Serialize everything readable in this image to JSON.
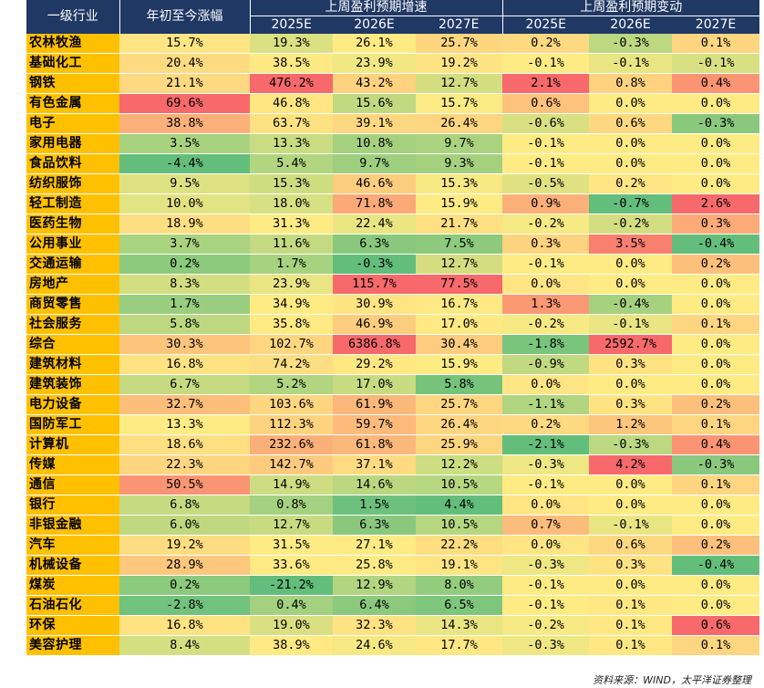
{
  "table": {
    "headers": {
      "industry": "一级行业",
      "ytd": "年初至今涨幅",
      "growth_group": "上周盈利预期增速",
      "change_group": "上周盈利预期变动",
      "years": [
        "2025E",
        "2026E",
        "2027E"
      ]
    },
    "rows": [
      {
        "name": "农林牧渔",
        "ytd": "15.7%",
        "g25": "19.3%",
        "g26": "26.1%",
        "g27": "25.7%",
        "c25": "0.2%",
        "c26": "-0.3%",
        "c27": "0.1%"
      },
      {
        "name": "基础化工",
        "ytd": "20.4%",
        "g25": "38.5%",
        "g26": "23.9%",
        "g27": "19.2%",
        "c25": "-0.1%",
        "c26": "-0.1%",
        "c27": "-0.1%"
      },
      {
        "name": "钢铁",
        "ytd": "21.1%",
        "g25": "476.2%",
        "g26": "43.2%",
        "g27": "12.7%",
        "c25": "2.1%",
        "c26": "0.8%",
        "c27": "0.4%"
      },
      {
        "name": "有色金属",
        "ytd": "69.6%",
        "g25": "46.8%",
        "g26": "15.6%",
        "g27": "15.7%",
        "c25": "0.6%",
        "c26": "0.0%",
        "c27": "0.0%"
      },
      {
        "name": "电子",
        "ytd": "38.8%",
        "g25": "63.7%",
        "g26": "39.1%",
        "g27": "26.4%",
        "c25": "-0.6%",
        "c26": "0.6%",
        "c27": "-0.3%"
      },
      {
        "name": "家用电器",
        "ytd": "3.5%",
        "g25": "13.3%",
        "g26": "10.8%",
        "g27": "9.7%",
        "c25": "-0.1%",
        "c26": "0.0%",
        "c27": "0.0%"
      },
      {
        "name": "食品饮料",
        "ytd": "-4.4%",
        "g25": "5.4%",
        "g26": "9.7%",
        "g27": "9.3%",
        "c25": "-0.1%",
        "c26": "0.0%",
        "c27": "0.0%"
      },
      {
        "name": "纺织服饰",
        "ytd": "9.5%",
        "g25": "15.3%",
        "g26": "46.6%",
        "g27": "15.3%",
        "c25": "-0.5%",
        "c26": "0.2%",
        "c27": "0.0%"
      },
      {
        "name": "轻工制造",
        "ytd": "10.0%",
        "g25": "18.0%",
        "g26": "71.8%",
        "g27": "15.9%",
        "c25": "0.9%",
        "c26": "-0.7%",
        "c27": "2.6%"
      },
      {
        "name": "医药生物",
        "ytd": "18.9%",
        "g25": "31.3%",
        "g26": "22.4%",
        "g27": "21.7%",
        "c25": "-0.2%",
        "c26": "-0.2%",
        "c27": "0.3%"
      },
      {
        "name": "公用事业",
        "ytd": "3.7%",
        "g25": "11.6%",
        "g26": "6.3%",
        "g27": "7.5%",
        "c25": "0.3%",
        "c26": "3.5%",
        "c27": "-0.4%"
      },
      {
        "name": "交通运输",
        "ytd": "0.2%",
        "g25": "1.7%",
        "g26": "-0.3%",
        "g27": "12.7%",
        "c25": "-0.1%",
        "c26": "0.0%",
        "c27": "0.2%"
      },
      {
        "name": "房地产",
        "ytd": "8.3%",
        "g25": "23.9%",
        "g26": "115.7%",
        "g27": "77.5%",
        "c25": "0.0%",
        "c26": "0.0%",
        "c27": "0.0%"
      },
      {
        "name": "商贸零售",
        "ytd": "1.7%",
        "g25": "34.9%",
        "g26": "30.9%",
        "g27": "16.7%",
        "c25": "1.3%",
        "c26": "-0.4%",
        "c27": "0.0%"
      },
      {
        "name": "社会服务",
        "ytd": "5.8%",
        "g25": "35.8%",
        "g26": "46.9%",
        "g27": "17.0%",
        "c25": "-0.2%",
        "c26": "-0.1%",
        "c27": "0.1%"
      },
      {
        "name": "综合",
        "ytd": "30.3%",
        "g25": "102.7%",
        "g26": "6386.8%",
        "g27": "30.4%",
        "c25": "-1.8%",
        "c26": "2592.7%",
        "c27": "0.0%"
      },
      {
        "name": "建筑材料",
        "ytd": "16.8%",
        "g25": "74.2%",
        "g26": "29.2%",
        "g27": "15.9%",
        "c25": "-0.9%",
        "c26": "0.3%",
        "c27": "0.0%"
      },
      {
        "name": "建筑装饰",
        "ytd": "6.7%",
        "g25": "5.2%",
        "g26": "17.0%",
        "g27": "5.8%",
        "c25": "0.0%",
        "c26": "0.0%",
        "c27": "0.0%"
      },
      {
        "name": "电力设备",
        "ytd": "32.7%",
        "g25": "103.6%",
        "g26": "61.9%",
        "g27": "25.7%",
        "c25": "-1.1%",
        "c26": "0.3%",
        "c27": "0.2%"
      },
      {
        "name": "国防军工",
        "ytd": "13.3%",
        "g25": "112.3%",
        "g26": "59.7%",
        "g27": "26.4%",
        "c25": "0.2%",
        "c26": "1.2%",
        "c27": "0.1%"
      },
      {
        "name": "计算机",
        "ytd": "18.6%",
        "g25": "232.6%",
        "g26": "61.8%",
        "g27": "25.9%",
        "c25": "-2.1%",
        "c26": "-0.3%",
        "c27": "0.4%"
      },
      {
        "name": "传媒",
        "ytd": "22.3%",
        "g25": "142.7%",
        "g26": "37.1%",
        "g27": "12.2%",
        "c25": "-0.3%",
        "c26": "4.2%",
        "c27": "-0.3%"
      },
      {
        "name": "通信",
        "ytd": "50.5%",
        "g25": "14.9%",
        "g26": "14.6%",
        "g27": "10.5%",
        "c25": "-0.1%",
        "c26": "0.0%",
        "c27": "0.1%"
      },
      {
        "name": "银行",
        "ytd": "6.8%",
        "g25": "0.8%",
        "g26": "1.5%",
        "g27": "4.4%",
        "c25": "0.0%",
        "c26": "0.0%",
        "c27": "0.0%"
      },
      {
        "name": "非银金融",
        "ytd": "6.0%",
        "g25": "12.7%",
        "g26": "6.3%",
        "g27": "10.5%",
        "c25": "0.7%",
        "c26": "-0.1%",
        "c27": "0.0%"
      },
      {
        "name": "汽车",
        "ytd": "19.2%",
        "g25": "31.5%",
        "g26": "27.1%",
        "g27": "22.2%",
        "c25": "0.0%",
        "c26": "0.6%",
        "c27": "0.2%"
      },
      {
        "name": "机械设备",
        "ytd": "28.9%",
        "g25": "33.6%",
        "g26": "25.8%",
        "g27": "19.1%",
        "c25": "-0.3%",
        "c26": "0.3%",
        "c27": "-0.4%"
      },
      {
        "name": "煤炭",
        "ytd": "0.2%",
        "g25": "-21.2%",
        "g26": "12.9%",
        "g27": "8.0%",
        "c25": "-0.1%",
        "c26": "0.0%",
        "c27": "0.0%"
      },
      {
        "name": "石油石化",
        "ytd": "-2.8%",
        "g25": "0.4%",
        "g26": "6.4%",
        "g27": "6.5%",
        "c25": "-0.1%",
        "c26": "0.1%",
        "c27": "0.0%"
      },
      {
        "name": "环保",
        "ytd": "16.8%",
        "g25": "19.0%",
        "g26": "32.3%",
        "g27": "14.3%",
        "c25": "-0.2%",
        "c26": "0.1%",
        "c27": "0.6%"
      },
      {
        "name": "美容护理",
        "ytd": "8.4%",
        "g25": "38.9%",
        "g26": "24.6%",
        "g27": "17.7%",
        "c25": "-0.3%",
        "c26": "0.1%",
        "c27": "0.1%"
      }
    ]
  },
  "source": "资料来源：WIND，太平洋证券整理"
}
